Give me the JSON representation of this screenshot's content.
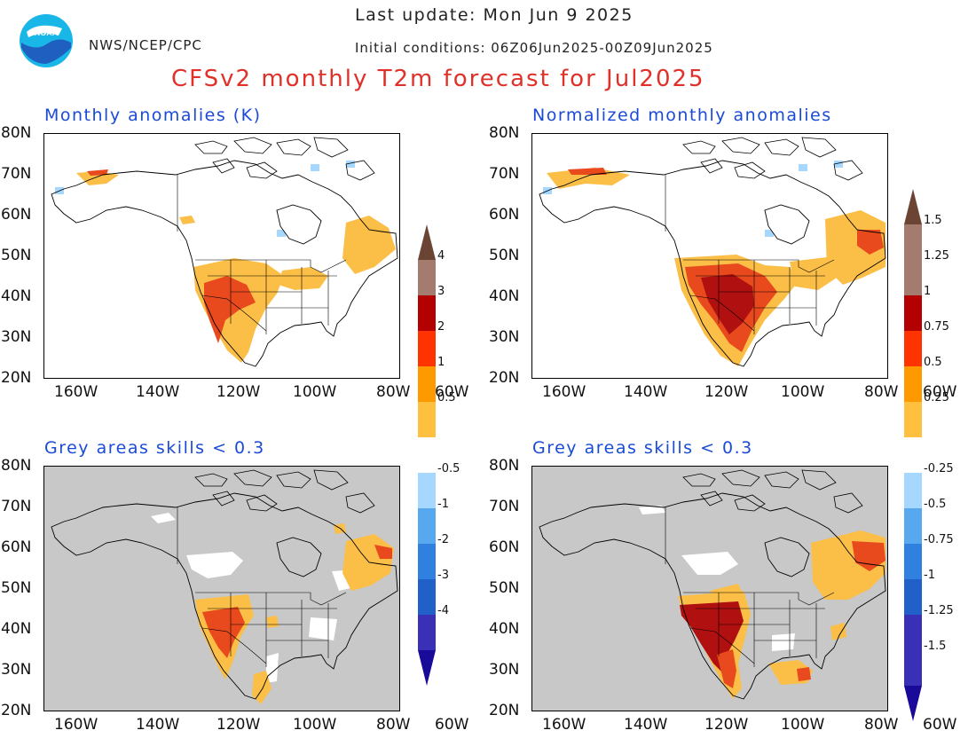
{
  "header": {
    "agency": "NWS/NCEP/CPC",
    "last_update": "Last update: Mon Jun 9 2025",
    "initial_conditions": "Initial conditions: 06Z06Jun2025-00Z09Jun2025",
    "main_title": "CFSv2 monthly T2m forecast for Jul2025",
    "logo_text": "NOAA"
  },
  "panels": [
    {
      "id": "top-left",
      "title": "Monthly anomalies (K)",
      "grey_background": false
    },
    {
      "id": "top-right",
      "title": "Normalized monthly anomalies",
      "grey_background": false
    },
    {
      "id": "bottom-left",
      "title": "Grey areas skills < 0.3",
      "grey_background": true
    },
    {
      "id": "bottom-right",
      "title": "Grey areas skills < 0.3",
      "grey_background": true
    }
  ],
  "axes": {
    "lat_labels": [
      "80N",
      "70N",
      "60N",
      "50N",
      "40N",
      "30N",
      "20N"
    ],
    "lon_labels": [
      "160W",
      "140W",
      "120W",
      "100W",
      "80W",
      "60W"
    ]
  },
  "colorbars": {
    "left": {
      "labels": [
        "4",
        "3",
        "2",
        "1",
        "0.5",
        "-0.5",
        "-1",
        "-2",
        "-3",
        "-4"
      ]
    },
    "right": {
      "labels": [
        "1.5",
        "1.25",
        "1",
        "0.75",
        "0.5",
        "0.25",
        "-0.25",
        "-0.5",
        "-0.75",
        "-1",
        "-1.25",
        "-1.5"
      ]
    },
    "colors_top_to_bottom": [
      "#a37c6f",
      "#b30000",
      "#ff3300",
      "#ff9900",
      "#ffc040",
      "#ffffff",
      "#a6d8ff",
      "#58a8f0",
      "#3080e0",
      "#2060c8",
      "#3a30b8"
    ],
    "arrow_top_color": "#6b4433",
    "arrow_bottom_color": "#1a0a9a"
  },
  "colors": {
    "title_red": "#e0302a",
    "title_blue": "#1a4bd6",
    "skill_grey": "#c8c8c8",
    "anom_light": "#fbbf47",
    "anom_red": "#e84a1e",
    "anom_dark": "#b01010"
  }
}
